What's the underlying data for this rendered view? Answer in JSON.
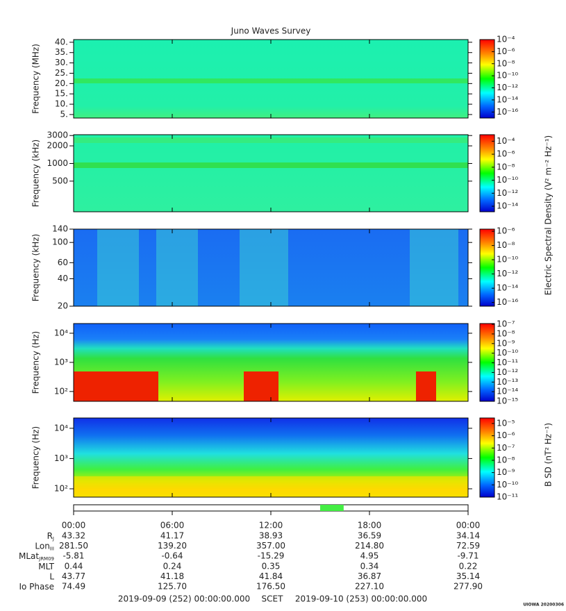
{
  "title": "Juno Waves Survey",
  "efield_colorbar_label": "Electric Spectral Density (V² m⁻² Hz⁻¹)",
  "bfield_colorbar_label": "B SD (nT² Hz⁻¹)",
  "chart_data": [
    {
      "type": "spectrogram",
      "ylabel": "Frequency (MHz)",
      "log": false,
      "ylim": [
        3.3,
        41.3
      ],
      "yticks": [
        {
          "value": 5,
          "label": "5."
        },
        {
          "value": 10,
          "label": "10."
        },
        {
          "value": 15,
          "label": "15."
        },
        {
          "value": 20,
          "label": "20."
        },
        {
          "value": 25,
          "label": "25."
        },
        {
          "value": 30,
          "label": "30."
        },
        {
          "value": 35,
          "label": "35."
        },
        {
          "value": 40,
          "label": "40."
        }
      ],
      "zlim": [
        1e-17,
        0.0001
      ],
      "zticks": [
        {
          "value": 0.0001,
          "label": "10⁻⁴"
        },
        {
          "value": 1e-06,
          "label": "10⁻⁶"
        },
        {
          "value": 1e-08,
          "label": "10⁻⁸"
        },
        {
          "value": 1e-10,
          "label": "10⁻¹⁰"
        },
        {
          "value": 1e-12,
          "label": "10⁻¹²"
        },
        {
          "value": 1e-14,
          "label": "10⁻¹⁴"
        },
        {
          "value": 1e-16,
          "label": "10⁻¹⁶"
        }
      ]
    },
    {
      "type": "spectrogram",
      "ylabel": "Frequency (kHz)",
      "log": true,
      "ylim": [
        150,
        3100
      ],
      "yticks": [
        500,
        1000,
        2000,
        3000
      ],
      "zlim": [
        1.4e-15,
        0.001
      ],
      "zticks": [
        {
          "value": 0.0001,
          "label": "10⁻⁴"
        },
        {
          "value": 1e-06,
          "label": "10⁻⁶"
        },
        {
          "value": 1e-08,
          "label": "10⁻⁸"
        },
        {
          "value": 1e-10,
          "label": "10⁻¹⁰"
        },
        {
          "value": 1e-12,
          "label": "10⁻¹²"
        },
        {
          "value": 1e-14,
          "label": "10⁻¹⁴"
        }
      ]
    },
    {
      "type": "spectrogram",
      "ylabel": "Frequency (kHz)",
      "log": true,
      "ylim": [
        20,
        140
      ],
      "yticks": [
        20,
        40,
        60,
        100,
        140
      ],
      "zlim": [
        3e-17,
        2e-06
      ],
      "zticks": [
        {
          "value": 1e-06,
          "label": "10⁻⁶"
        },
        {
          "value": 1e-08,
          "label": "10⁻⁸"
        },
        {
          "value": 1e-10,
          "label": "10⁻¹⁰"
        },
        {
          "value": 1e-12,
          "label": "10⁻¹²"
        },
        {
          "value": 1e-14,
          "label": "10⁻¹⁴"
        },
        {
          "value": 1e-16,
          "label": "10⁻¹⁶"
        }
      ]
    },
    {
      "type": "spectrogram",
      "ylabel": "Frequency (Hz)",
      "log": true,
      "ylim": [
        46,
        21500
      ],
      "yticks": [
        {
          "value": 100,
          "label": "10²"
        },
        {
          "value": 1000,
          "label": "10³"
        },
        {
          "value": 10000,
          "label": "10⁴"
        }
      ],
      "zlim": [
        1e-15,
        1.2e-07
      ],
      "zticks": [
        {
          "value": 1e-07,
          "label": "10⁻⁷"
        },
        {
          "value": 1e-08,
          "label": "10⁻⁸"
        },
        {
          "value": 1e-09,
          "label": "10⁻⁹"
        },
        {
          "value": 1e-10,
          "label": "10⁻¹⁰"
        },
        {
          "value": 1e-11,
          "label": "10⁻¹¹"
        },
        {
          "value": 1e-12,
          "label": "10⁻¹²"
        },
        {
          "value": 1e-13,
          "label": "10⁻¹³"
        },
        {
          "value": 1e-14,
          "label": "10⁻¹⁴"
        },
        {
          "value": 1e-15,
          "label": "10⁻¹⁵"
        }
      ]
    },
    {
      "type": "spectrogram",
      "ylabel": "Frequency (Hz)",
      "log": true,
      "ylim": [
        53,
        21900
      ],
      "yticks": [
        {
          "value": 100,
          "label": "10²"
        },
        {
          "value": 1000,
          "label": "10³"
        },
        {
          "value": 10000,
          "label": "10⁴"
        }
      ],
      "zlim": [
        1e-11,
        2.8e-05
      ],
      "zticks": [
        {
          "value": 1e-05,
          "label": "10⁻⁵"
        },
        {
          "value": 1e-06,
          "label": "10⁻⁶"
        },
        {
          "value": 1e-07,
          "label": "10⁻⁷"
        },
        {
          "value": 1e-08,
          "label": "10⁻⁸"
        },
        {
          "value": 1e-09,
          "label": "10⁻⁹"
        },
        {
          "value": 1e-10,
          "label": "10⁻¹⁰"
        },
        {
          "value": 1e-11,
          "label": "10⁻¹¹"
        }
      ]
    }
  ],
  "xlim": [
    0,
    24
  ],
  "xticks": [
    {
      "value": 0,
      "label": "00:00"
    },
    {
      "value": 6,
      "label": "06:00"
    },
    {
      "value": 12,
      "label": "12:00"
    },
    {
      "value": 18,
      "label": "18:00"
    },
    {
      "value": 24,
      "label": "00:00"
    }
  ],
  "mode_bar": {
    "start": 15.0,
    "end": 16.43,
    "color": "#44ee44"
  },
  "ephemeris": [
    {
      "label": "R",
      "sub": "J",
      "values": [
        "43.32",
        "41.17",
        "38.93",
        "36.59",
        "34.14"
      ]
    },
    {
      "label": "Lon",
      "sub": "III",
      "values": [
        "281.50",
        "139.20",
        "357.00",
        "214.80",
        "72.59"
      ]
    },
    {
      "label": "MLat",
      "sub": "JRM09",
      "values": [
        "-5.81",
        "-0.64",
        "-15.29",
        "4.95",
        "-9.71"
      ]
    },
    {
      "label": "MLT",
      "values": [
        "0.44",
        "0.24",
        "0.35",
        "0.34",
        "0.22"
      ]
    },
    {
      "label": "L",
      "values": [
        "43.77",
        "41.18",
        "41.84",
        "36.87",
        "35.14"
      ]
    },
    {
      "label": "Io Phase",
      "values": [
        "74.49",
        "125.70",
        "176.50",
        "227.10",
        "277.90"
      ]
    }
  ],
  "footer": {
    "start": "2019-09-09 (252) 00:00:00.000",
    "middle": "SCET",
    "end": "2019-09-10 (253) 00:00:00.000"
  },
  "watermark": "UIOWA 20200306"
}
